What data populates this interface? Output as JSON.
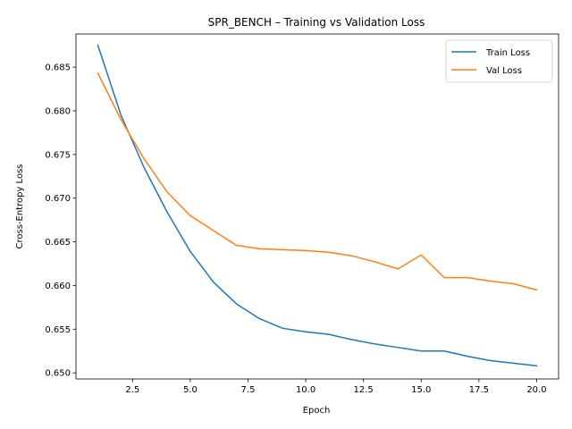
{
  "chart_data": {
    "type": "line",
    "title": "SPR_BENCH – Training vs Validation Loss",
    "xlabel": "Epoch",
    "ylabel": "Cross-Entropy Loss",
    "xlim": [
      0.05,
      20.95
    ],
    "ylim": [
      0.6493,
      0.6888
    ],
    "x_ticks": [
      2.5,
      5.0,
      7.5,
      10.0,
      12.5,
      15.0,
      17.5,
      20.0
    ],
    "x_tick_labels": [
      "2.5",
      "5.0",
      "7.5",
      "10.0",
      "12.5",
      "15.0",
      "17.5",
      "20.0"
    ],
    "y_ticks": [
      0.65,
      0.655,
      0.66,
      0.665,
      0.67,
      0.675,
      0.68,
      0.685
    ],
    "y_tick_labels": [
      "0.650",
      "0.655",
      "0.660",
      "0.665",
      "0.670",
      "0.675",
      "0.680",
      "0.685"
    ],
    "x": [
      1,
      2,
      3,
      4,
      5,
      6,
      7,
      8,
      9,
      10,
      11,
      12,
      13,
      14,
      15,
      16,
      17,
      18,
      19,
      20
    ],
    "series": [
      {
        "name": "Train Loss",
        "color": "#1f77b4",
        "values": [
          0.6875,
          0.6795,
          0.6735,
          0.6684,
          0.6639,
          0.6604,
          0.6579,
          0.6562,
          0.6551,
          0.6547,
          0.6544,
          0.6538,
          0.6533,
          0.6529,
          0.6525,
          0.6525,
          0.6519,
          0.6514,
          0.6511,
          0.6508
        ]
      },
      {
        "name": "Val Loss",
        "color": "#ff7f0e",
        "values": [
          0.6843,
          0.679,
          0.6745,
          0.6707,
          0.668,
          0.6663,
          0.6646,
          0.6642,
          0.6641,
          0.664,
          0.6638,
          0.6634,
          0.6627,
          0.6619,
          0.6635,
          0.6609,
          0.6609,
          0.6605,
          0.6602,
          0.6595
        ]
      }
    ],
    "legend_position": "top-right",
    "grid": false
  }
}
